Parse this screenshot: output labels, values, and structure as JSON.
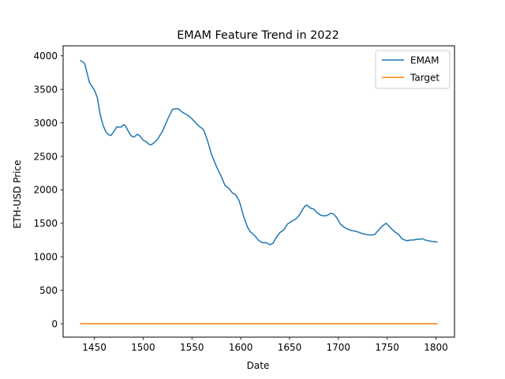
{
  "chart_data": {
    "type": "line",
    "title": "EMAM Feature Trend in 2022",
    "xlabel": "Date",
    "ylabel": "ETH-USD Price",
    "xlim": [
      1418,
      1819
    ],
    "ylim": [
      -200,
      4150
    ],
    "xticks": [
      1450,
      1500,
      1550,
      1600,
      1650,
      1700,
      1750,
      1800
    ],
    "yticks": [
      0,
      500,
      1000,
      1500,
      2000,
      2500,
      3000,
      3500,
      4000
    ],
    "grid": false,
    "legend_position": "top-right",
    "series": [
      {
        "name": "EMAM",
        "color": "#1f77b4",
        "points": [
          [
            1436,
            3930
          ],
          [
            1440,
            3890
          ],
          [
            1445,
            3600
          ],
          [
            1450,
            3490
          ],
          [
            1453,
            3380
          ],
          [
            1456,
            3120
          ],
          [
            1459,
            2960
          ],
          [
            1462,
            2860
          ],
          [
            1465,
            2820
          ],
          [
            1467,
            2810
          ],
          [
            1470,
            2870
          ],
          [
            1473,
            2940
          ],
          [
            1476,
            2935
          ],
          [
            1478,
            2940
          ],
          [
            1480,
            2975
          ],
          [
            1482,
            2950
          ],
          [
            1485,
            2870
          ],
          [
            1488,
            2800
          ],
          [
            1491,
            2790
          ],
          [
            1494,
            2830
          ],
          [
            1497,
            2800
          ],
          [
            1500,
            2740
          ],
          [
            1503,
            2720
          ],
          [
            1506,
            2680
          ],
          [
            1508,
            2670
          ],
          [
            1511,
            2700
          ],
          [
            1515,
            2760
          ],
          [
            1520,
            2880
          ],
          [
            1525,
            3050
          ],
          [
            1530,
            3200
          ],
          [
            1533,
            3210
          ],
          [
            1536,
            3210
          ],
          [
            1540,
            3160
          ],
          [
            1545,
            3120
          ],
          [
            1550,
            3060
          ],
          [
            1555,
            2980
          ],
          [
            1558,
            2940
          ],
          [
            1561,
            2910
          ],
          [
            1563,
            2860
          ],
          [
            1566,
            2730
          ],
          [
            1570,
            2530
          ],
          [
            1575,
            2350
          ],
          [
            1580,
            2200
          ],
          [
            1584,
            2060
          ],
          [
            1588,
            2020
          ],
          [
            1591,
            1960
          ],
          [
            1595,
            1920
          ],
          [
            1598,
            1850
          ],
          [
            1600,
            1760
          ],
          [
            1603,
            1600
          ],
          [
            1607,
            1440
          ],
          [
            1610,
            1370
          ],
          [
            1614,
            1320
          ],
          [
            1618,
            1250
          ],
          [
            1622,
            1210
          ],
          [
            1626,
            1210
          ],
          [
            1630,
            1180
          ],
          [
            1633,
            1200
          ],
          [
            1636,
            1280
          ],
          [
            1640,
            1360
          ],
          [
            1644,
            1400
          ],
          [
            1648,
            1490
          ],
          [
            1652,
            1530
          ],
          [
            1656,
            1560
          ],
          [
            1660,
            1620
          ],
          [
            1663,
            1700
          ],
          [
            1666,
            1760
          ],
          [
            1668,
            1770
          ],
          [
            1671,
            1730
          ],
          [
            1675,
            1710
          ],
          [
            1678,
            1660
          ],
          [
            1682,
            1620
          ],
          [
            1686,
            1610
          ],
          [
            1689,
            1620
          ],
          [
            1692,
            1650
          ],
          [
            1695,
            1640
          ],
          [
            1698,
            1590
          ],
          [
            1702,
            1490
          ],
          [
            1706,
            1440
          ],
          [
            1710,
            1410
          ],
          [
            1714,
            1390
          ],
          [
            1718,
            1380
          ],
          [
            1722,
            1360
          ],
          [
            1726,
            1340
          ],
          [
            1730,
            1330
          ],
          [
            1734,
            1325
          ],
          [
            1737,
            1330
          ],
          [
            1740,
            1380
          ],
          [
            1743,
            1430
          ],
          [
            1746,
            1470
          ],
          [
            1749,
            1500
          ],
          [
            1751,
            1470
          ],
          [
            1755,
            1410
          ],
          [
            1758,
            1370
          ],
          [
            1762,
            1330
          ],
          [
            1765,
            1270
          ],
          [
            1768,
            1250
          ],
          [
            1771,
            1240
          ],
          [
            1774,
            1250
          ],
          [
            1777,
            1250
          ],
          [
            1780,
            1260
          ],
          [
            1783,
            1260
          ],
          [
            1786,
            1270
          ],
          [
            1789,
            1250
          ],
          [
            1792,
            1240
          ],
          [
            1796,
            1230
          ],
          [
            1799,
            1225
          ],
          [
            1801,
            1220
          ]
        ]
      },
      {
        "name": "Target",
        "color": "#ff7f0e",
        "points": [
          [
            1436,
            0
          ],
          [
            1801,
            0
          ]
        ]
      }
    ]
  }
}
